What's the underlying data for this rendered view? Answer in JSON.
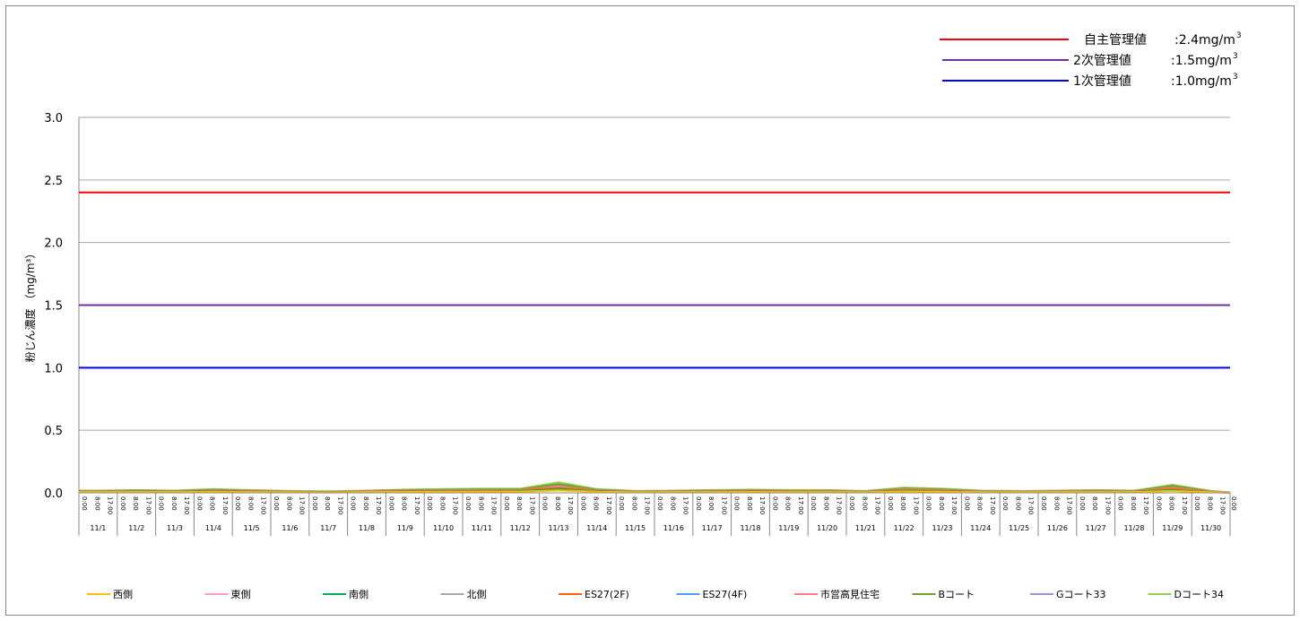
{
  "chart_data": {
    "type": "line",
    "ylabel": "粉じん濃度 （mg/m³）",
    "ylim": [
      0,
      3.0
    ],
    "yticks": [
      "0.0",
      "0.5",
      "1.0",
      "1.5",
      "2.0",
      "2.5",
      "3.0"
    ],
    "grid": true,
    "dates": [
      "11/1",
      "11/2",
      "11/3",
      "11/4",
      "11/5",
      "11/6",
      "11/7",
      "11/8",
      "11/9",
      "11/10",
      "11/11",
      "11/12",
      "11/13",
      "11/14",
      "11/15",
      "11/16",
      "11/17",
      "11/18",
      "11/19",
      "11/20",
      "11/21",
      "11/22",
      "11/23",
      "11/24",
      "11/25",
      "11/26",
      "11/27",
      "11/28",
      "11/29",
      "11/30"
    ],
    "time_ticks": [
      "0:00",
      "8:00",
      "17:00"
    ],
    "time_tick_end": "0:00",
    "reference_lines": [
      {
        "name": "自主管理値",
        "value": 2.4,
        "label_value": ":2.4mg/m",
        "unit_sup": "3",
        "color": "#ff0000"
      },
      {
        "name": "2次管理値",
        "value": 1.5,
        "label_value": ":1.5mg/m",
        "unit_sup": "3",
        "color": "#7030a0"
      },
      {
        "name": "1次管理値",
        "value": 1.0,
        "label_value": ":1.0mg/m",
        "unit_sup": "3",
        "color": "#0000ff"
      }
    ],
    "series": [
      {
        "name": "西側",
        "color": "#ffc000",
        "values": [
          0.005,
          0.006,
          0.005,
          0.008,
          0.006,
          0.004,
          0.003,
          0.005,
          0.007,
          0.008,
          0.009,
          0.009,
          0.02,
          0.008,
          0.004,
          0.005,
          0.006,
          0.007,
          0.006,
          0.006,
          0.004,
          0.01,
          0.008,
          0.005,
          0.004,
          0.005,
          0.006,
          0.005,
          0.015,
          0.004
        ]
      },
      {
        "name": "東側",
        "color": "#ff99cc",
        "values": [
          0.005,
          0.006,
          0.005,
          0.008,
          0.006,
          0.004,
          0.003,
          0.005,
          0.007,
          0.008,
          0.009,
          0.009,
          0.02,
          0.008,
          0.004,
          0.005,
          0.006,
          0.007,
          0.006,
          0.006,
          0.004,
          0.01,
          0.008,
          0.005,
          0.004,
          0.005,
          0.006,
          0.005,
          0.015,
          0.004
        ]
      },
      {
        "name": "南側",
        "color": "#00b050",
        "values": [
          0.008,
          0.01,
          0.008,
          0.012,
          0.009,
          0.006,
          0.005,
          0.007,
          0.01,
          0.012,
          0.014,
          0.014,
          0.03,
          0.012,
          0.006,
          0.007,
          0.009,
          0.01,
          0.009,
          0.009,
          0.006,
          0.016,
          0.013,
          0.008,
          0.006,
          0.007,
          0.009,
          0.008,
          0.022,
          0.006
        ]
      },
      {
        "name": "北側",
        "color": "#a6a6a6",
        "values": [
          0.006,
          0.007,
          0.006,
          0.009,
          0.007,
          0.005,
          0.004,
          0.006,
          0.008,
          0.009,
          0.01,
          0.01,
          0.022,
          0.009,
          0.005,
          0.006,
          0.007,
          0.008,
          0.007,
          0.007,
          0.005,
          0.012,
          0.01,
          0.006,
          0.005,
          0.006,
          0.007,
          0.006,
          0.017,
          0.005
        ]
      },
      {
        "name": "ES27(2F)",
        "color": "#ff6600",
        "values": [
          0.01,
          0.012,
          0.01,
          0.016,
          0.012,
          0.008,
          0.006,
          0.01,
          0.014,
          0.016,
          0.018,
          0.018,
          0.04,
          0.016,
          0.008,
          0.01,
          0.012,
          0.014,
          0.012,
          0.012,
          0.008,
          0.022,
          0.018,
          0.01,
          0.008,
          0.01,
          0.012,
          0.01,
          0.03,
          0.008
        ]
      },
      {
        "name": "ES27(4F)",
        "color": "#4f9fef",
        "values": [
          0.009,
          0.011,
          0.009,
          0.014,
          0.011,
          0.007,
          0.005,
          0.009,
          0.012,
          0.014,
          0.016,
          0.016,
          0.036,
          0.014,
          0.007,
          0.009,
          0.011,
          0.012,
          0.011,
          0.011,
          0.007,
          0.02,
          0.016,
          0.009,
          0.007,
          0.009,
          0.011,
          0.009,
          0.027,
          0.007
        ]
      },
      {
        "name": "市営高見住宅",
        "color": "#ff7c80",
        "values": [
          0.012,
          0.014,
          0.012,
          0.02,
          0.015,
          0.01,
          0.008,
          0.012,
          0.018,
          0.02,
          0.022,
          0.022,
          0.05,
          0.02,
          0.01,
          0.012,
          0.015,
          0.018,
          0.015,
          0.015,
          0.01,
          0.028,
          0.022,
          0.012,
          0.01,
          0.012,
          0.015,
          0.012,
          0.04,
          0.01
        ]
      },
      {
        "name": "Bコート",
        "color": "#70a030",
        "values": [
          0.015,
          0.018,
          0.015,
          0.025,
          0.018,
          0.012,
          0.01,
          0.015,
          0.022,
          0.025,
          0.028,
          0.028,
          0.07,
          0.025,
          0.012,
          0.015,
          0.018,
          0.022,
          0.018,
          0.018,
          0.012,
          0.035,
          0.028,
          0.015,
          0.012,
          0.015,
          0.018,
          0.015,
          0.055,
          0.012
        ]
      },
      {
        "name": "Gコート33",
        "color": "#a48fd8",
        "values": [
          0.014,
          0.017,
          0.014,
          0.023,
          0.017,
          0.011,
          0.009,
          0.014,
          0.02,
          0.023,
          0.026,
          0.026,
          0.065,
          0.023,
          0.011,
          0.014,
          0.017,
          0.02,
          0.017,
          0.017,
          0.011,
          0.032,
          0.026,
          0.014,
          0.011,
          0.014,
          0.017,
          0.014,
          0.05,
          0.011
        ]
      },
      {
        "name": "Dコート34",
        "color": "#92d050",
        "values": [
          0.018,
          0.022,
          0.018,
          0.03,
          0.022,
          0.015,
          0.012,
          0.018,
          0.026,
          0.03,
          0.034,
          0.034,
          0.085,
          0.03,
          0.015,
          0.018,
          0.022,
          0.026,
          0.022,
          0.022,
          0.015,
          0.042,
          0.034,
          0.018,
          0.015,
          0.018,
          0.022,
          0.018,
          0.065,
          0.015
        ]
      }
    ]
  }
}
